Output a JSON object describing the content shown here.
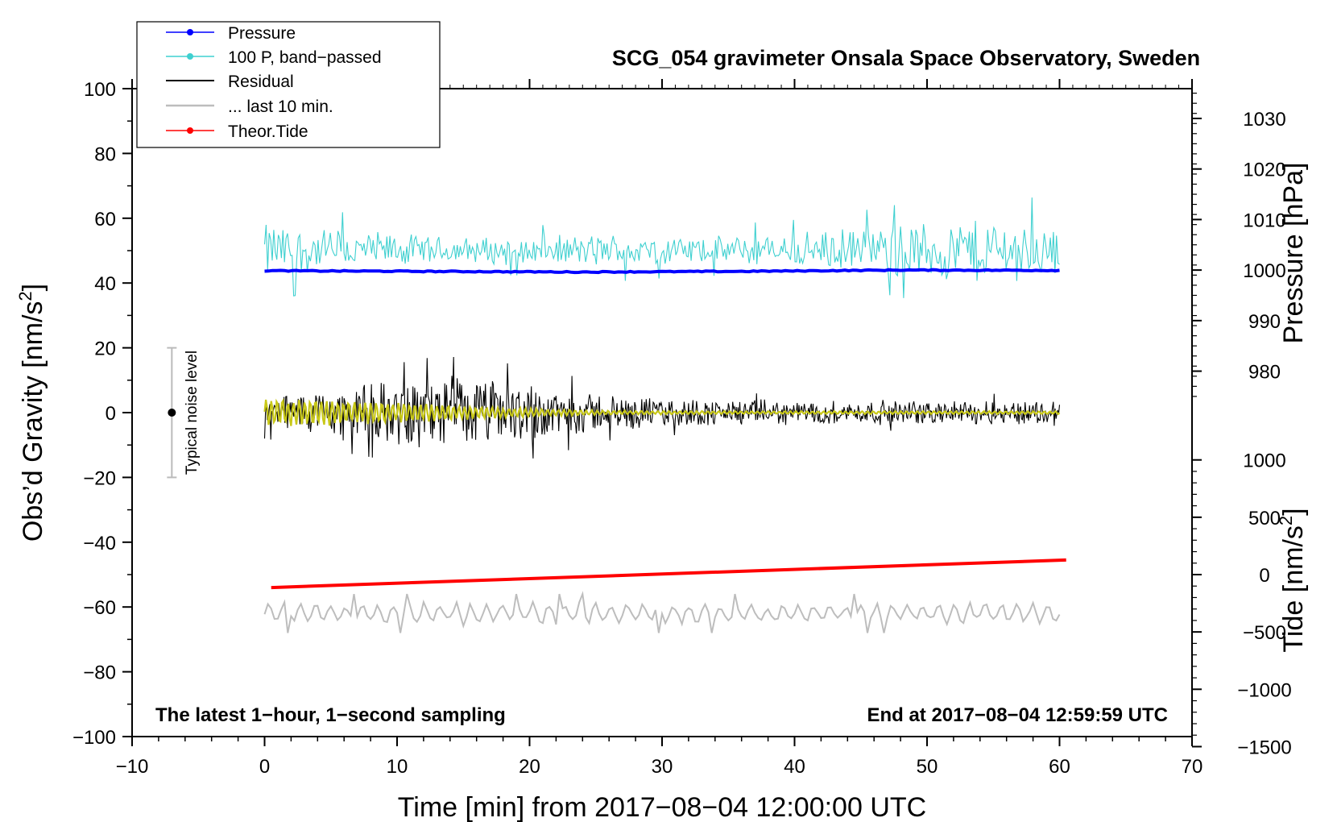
{
  "chart_data": {
    "type": "line",
    "title": "SCG_054 gravimeter Onsala Space Observatory, Sweden",
    "xlabel": "Time [min] from 2017−08−04 12:00:00 UTC",
    "xlim": [
      -10,
      70
    ],
    "x_ticks": [
      "−10",
      "0",
      "10",
      "20",
      "30",
      "40",
      "50",
      "60",
      "70"
    ],
    "left_axis": {
      "label": "Obs’d Gravity [nm/s",
      "label_sup": "2",
      "label_end": "]",
      "ylim": [
        -100,
        100
      ],
      "ticks": [
        "−100",
        "−80",
        "−60",
        "−40",
        "−20",
        "0",
        "20",
        "40",
        "60",
        "80",
        "100"
      ]
    },
    "pressure_axis": {
      "label": "Pressure [hPa]",
      "ticks": [
        "980",
        "990",
        "1000",
        "1010",
        "1020",
        "1030"
      ]
    },
    "tide_axis": {
      "label": "Tide [nm/s",
      "label_sup": "2",
      "label_end": "]",
      "ticks": [
        "−1500",
        "−1000",
        "−500",
        "0",
        "500",
        "1000"
      ]
    },
    "legend": {
      "position": "top-left",
      "entries": [
        "Pressure",
        "100 P, band−passed",
        "Residual",
        "... last 10 min.",
        "Theor.Tide"
      ]
    },
    "annotations": {
      "bottom_left": "The latest 1−hour, 1−second sampling",
      "bottom_right": "End at 2017−08−04 12:59:59 UTC",
      "noise_label": "Typical noise level"
    },
    "noise_bar": {
      "x": -7,
      "center": 0,
      "low": -20,
      "high": 20
    },
    "colors": {
      "pressure": "#0000ff",
      "bandpass": "#3fd0d0",
      "residual": "#000000",
      "residual_smooth": "#c8c818",
      "last10": "#bdbdbd",
      "tide": "#ff0000",
      "noise": "#bbbbbb"
    },
    "series": [
      {
        "name": "Pressure",
        "x_range": [
          0,
          60
        ],
        "y_gravity_units": [
          43.8,
          43.6,
          43.4,
          43.6,
          44.0,
          43.9
        ]
      },
      {
        "name": "100 P, band−passed",
        "x_range": [
          0,
          60
        ],
        "center": 50,
        "amplitude_env": [
          8,
          6,
          4,
          4,
          5,
          4,
          5,
          7,
          10,
          8
        ]
      },
      {
        "name": "Residual",
        "x_range": [
          0,
          60
        ],
        "center": 0,
        "amplitude_env": [
          5,
          8,
          11,
          9,
          5,
          4,
          3.5,
          3.5,
          3.5,
          4
        ]
      },
      {
        "name": "Residual (smoothed)",
        "x_range": [
          0,
          60
        ],
        "center": 0,
        "amplitude_env": [
          4,
          3,
          1.5,
          0.6,
          0.4,
          0.4,
          0.4,
          0.4
        ]
      },
      {
        "name": "... last 10 min.",
        "x_range": [
          0,
          60
        ],
        "center": -62,
        "amplitude": 3
      },
      {
        "name": "Theor.Tide",
        "x": [
          0.5,
          60.5
        ],
        "y_gravity_units": [
          -54,
          -45.5
        ]
      }
    ]
  }
}
